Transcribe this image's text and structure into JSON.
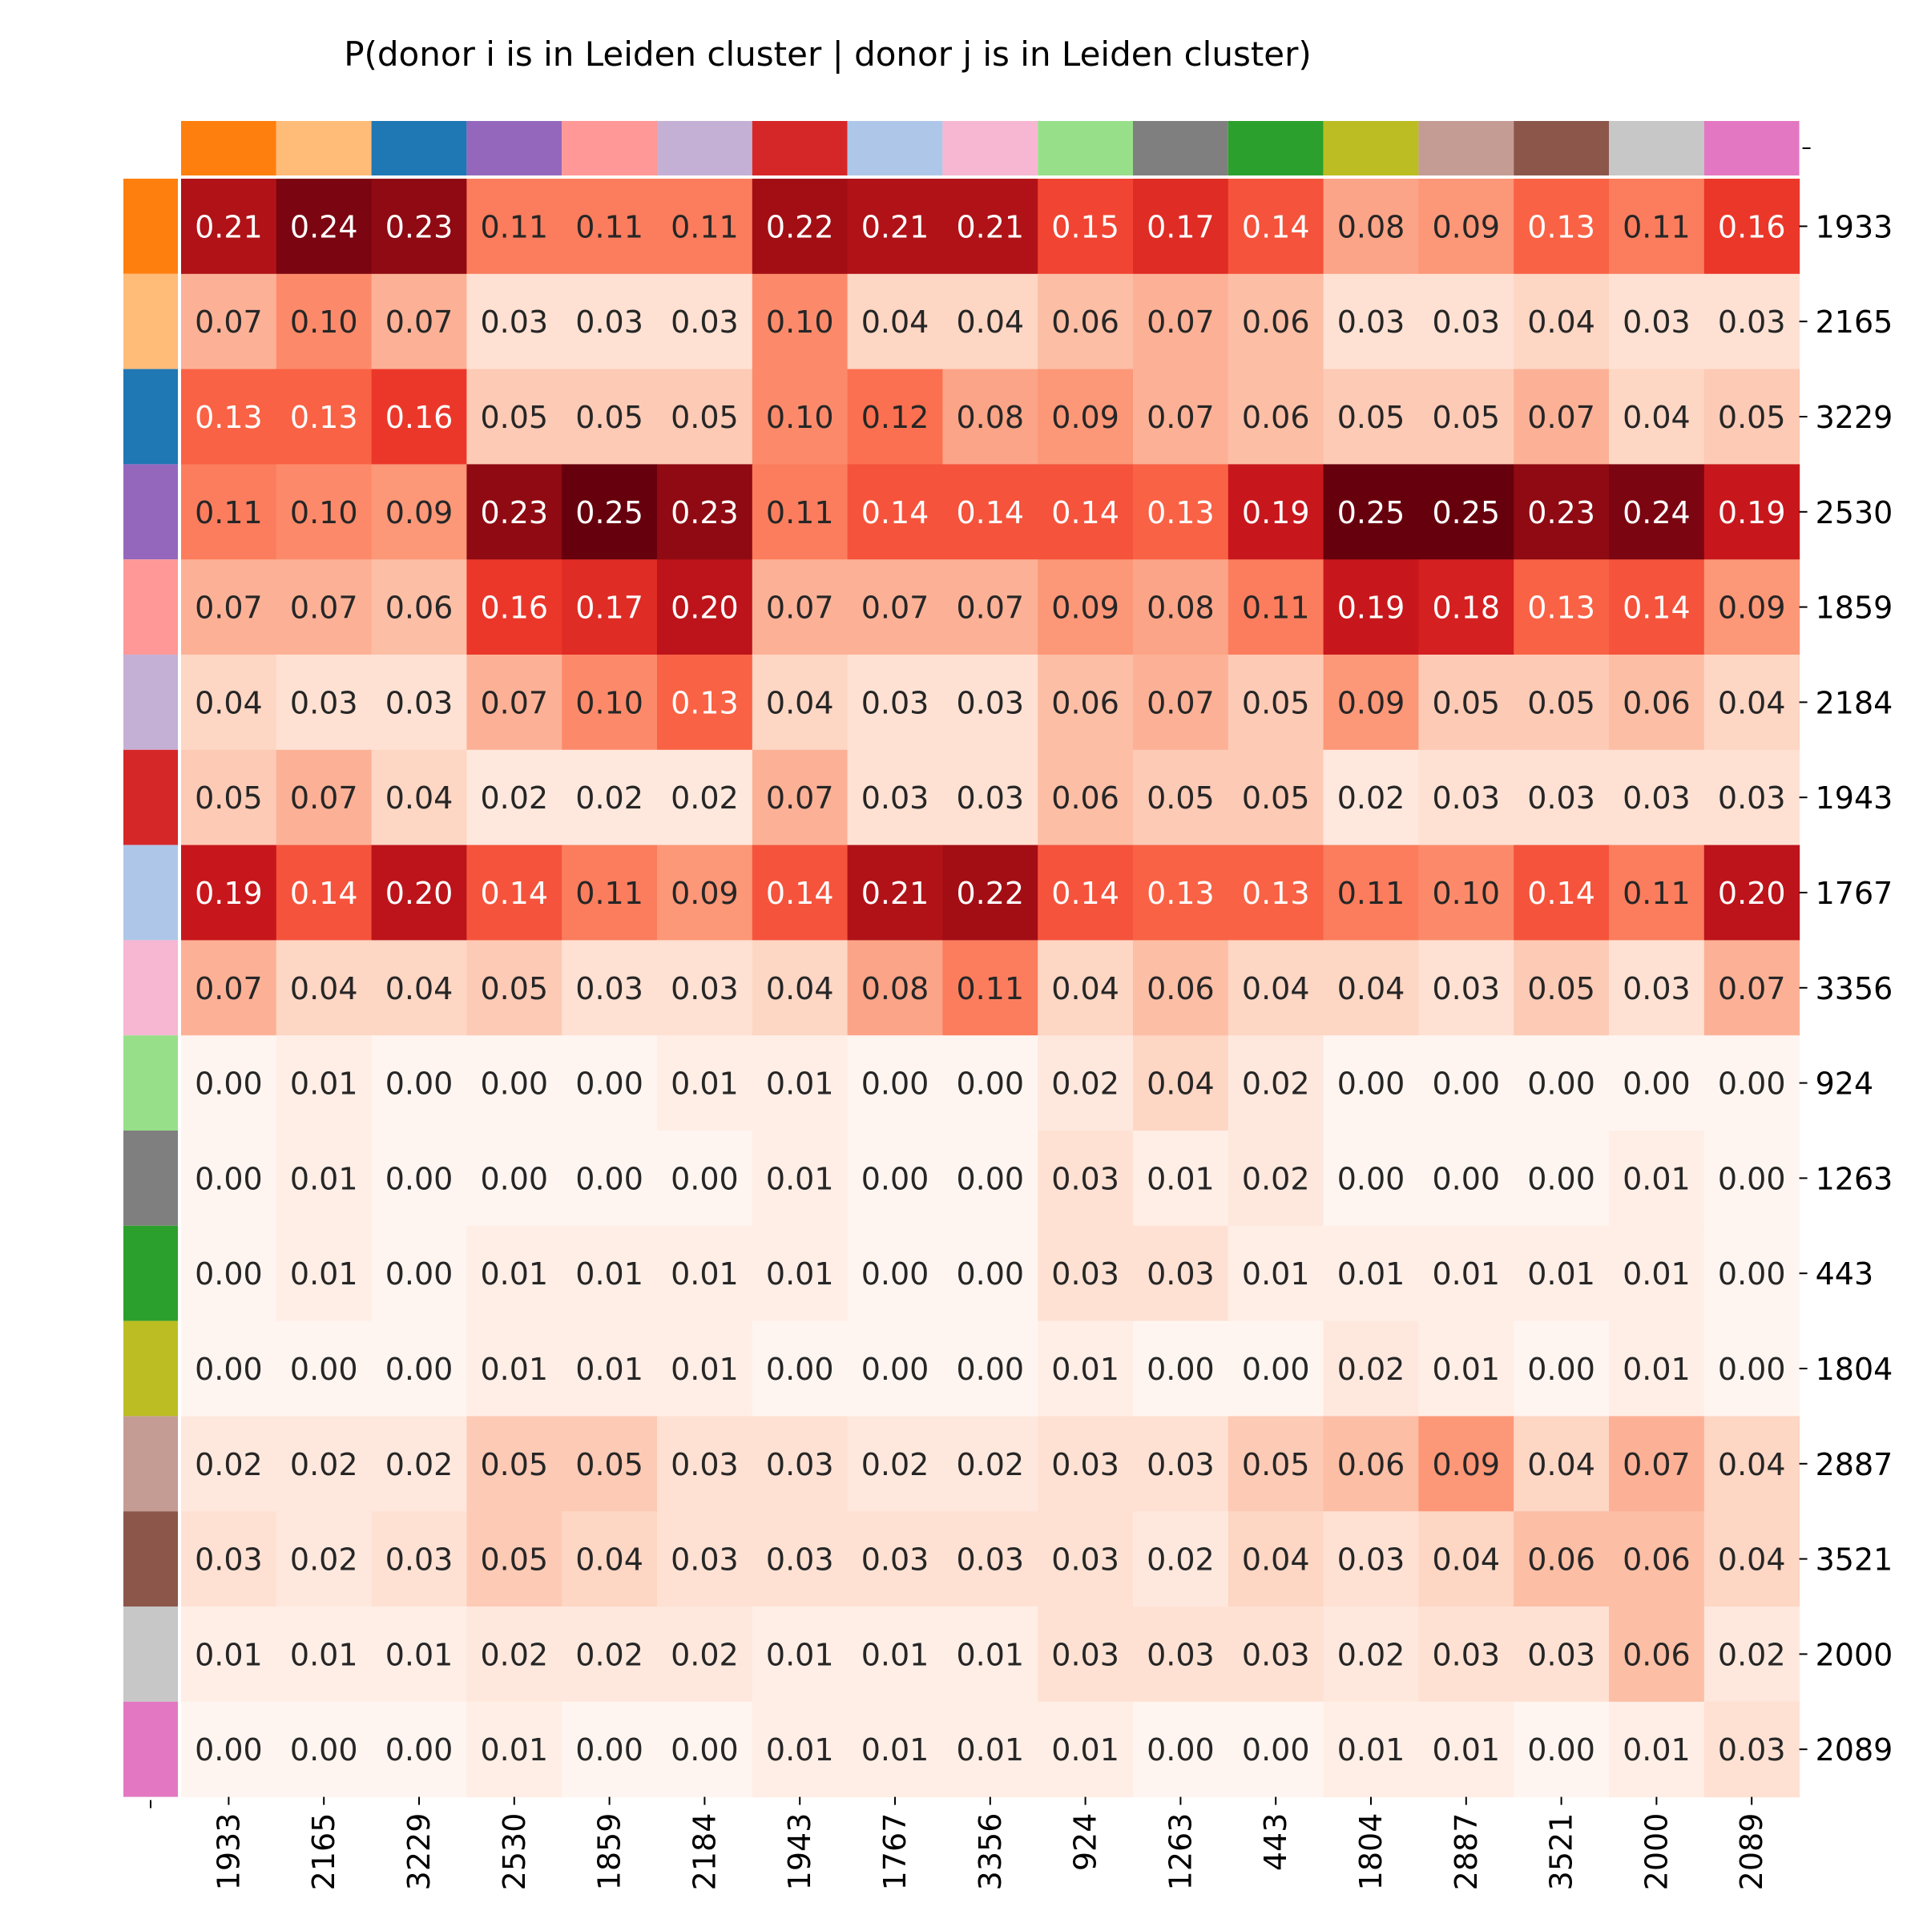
{
  "chart_data": {
    "type": "heatmap",
    "title": "P(donor i is in Leiden cluster | donor j is in Leiden cluster)",
    "xlabel": "",
    "ylabel": "",
    "column_labels": [
      "1933",
      "2165",
      "3229",
      "2530",
      "1859",
      "2184",
      "1943",
      "1767",
      "3356",
      "924",
      "1263",
      "443",
      "1804",
      "2887",
      "3521",
      "2000",
      "2089"
    ],
    "row_labels": [
      "1933",
      "2165",
      "3229",
      "2530",
      "1859",
      "2184",
      "1943",
      "1767",
      "3356",
      "924",
      "1263",
      "443",
      "1804",
      "2887",
      "3521",
      "2000",
      "2089"
    ],
    "donor_colors": [
      "#ff7f0e",
      "#ffbb78",
      "#1f77b4",
      "#9467bd",
      "#ff9896",
      "#c5b0d5",
      "#d62728",
      "#aec7e8",
      "#f7b6d2",
      "#98df8a",
      "#7f7f7f",
      "#2ca02c",
      "#bcbd22",
      "#c49c94",
      "#8c564b",
      "#c7c7c7",
      "#e377c2"
    ],
    "value_range": [
      0,
      0.25
    ],
    "colormap": "Reds",
    "annotation_format": "0.00",
    "values": [
      [
        0.21,
        0.24,
        0.23,
        0.11,
        0.11,
        0.11,
        0.22,
        0.21,
        0.21,
        0.15,
        0.17,
        0.14,
        0.08,
        0.09,
        0.13,
        0.11,
        0.16
      ],
      [
        0.07,
        0.1,
        0.07,
        0.03,
        0.03,
        0.03,
        0.1,
        0.04,
        0.04,
        0.06,
        0.07,
        0.06,
        0.03,
        0.03,
        0.04,
        0.03,
        0.03
      ],
      [
        0.13,
        0.13,
        0.16,
        0.05,
        0.05,
        0.05,
        0.1,
        0.12,
        0.08,
        0.09,
        0.07,
        0.06,
        0.05,
        0.05,
        0.07,
        0.04,
        0.05
      ],
      [
        0.11,
        0.1,
        0.09,
        0.23,
        0.25,
        0.23,
        0.11,
        0.14,
        0.14,
        0.14,
        0.13,
        0.19,
        0.25,
        0.25,
        0.23,
        0.24,
        0.19
      ],
      [
        0.07,
        0.07,
        0.06,
        0.16,
        0.17,
        0.2,
        0.07,
        0.07,
        0.07,
        0.09,
        0.08,
        0.11,
        0.19,
        0.18,
        0.13,
        0.14,
        0.09
      ],
      [
        0.04,
        0.03,
        0.03,
        0.07,
        0.1,
        0.13,
        0.04,
        0.03,
        0.03,
        0.06,
        0.07,
        0.05,
        0.09,
        0.05,
        0.05,
        0.06,
        0.04
      ],
      [
        0.05,
        0.07,
        0.04,
        0.02,
        0.02,
        0.02,
        0.07,
        0.03,
        0.03,
        0.06,
        0.05,
        0.05,
        0.02,
        0.03,
        0.03,
        0.03,
        0.03
      ],
      [
        0.19,
        0.14,
        0.2,
        0.14,
        0.11,
        0.09,
        0.14,
        0.21,
        0.22,
        0.14,
        0.13,
        0.13,
        0.11,
        0.1,
        0.14,
        0.11,
        0.2
      ],
      [
        0.07,
        0.04,
        0.04,
        0.05,
        0.03,
        0.03,
        0.04,
        0.08,
        0.11,
        0.04,
        0.06,
        0.04,
        0.04,
        0.03,
        0.05,
        0.03,
        0.07
      ],
      [
        0.0,
        0.01,
        0.0,
        0.0,
        0.0,
        0.01,
        0.01,
        0.0,
        0.0,
        0.02,
        0.04,
        0.02,
        0.0,
        0.0,
        0.0,
        0.0,
        0.0
      ],
      [
        0.0,
        0.01,
        0.0,
        0.0,
        0.0,
        0.0,
        0.01,
        0.0,
        0.0,
        0.03,
        0.01,
        0.02,
        0.0,
        0.0,
        0.0,
        0.01,
        0.0
      ],
      [
        0.0,
        0.01,
        0.0,
        0.01,
        0.01,
        0.01,
        0.01,
        0.0,
        0.0,
        0.03,
        0.03,
        0.01,
        0.01,
        0.01,
        0.01,
        0.01,
        0.0
      ],
      [
        0.0,
        0.0,
        0.0,
        0.01,
        0.01,
        0.01,
        0.0,
        0.0,
        0.0,
        0.01,
        0.0,
        0.0,
        0.02,
        0.01,
        0.0,
        0.01,
        0.0
      ],
      [
        0.02,
        0.02,
        0.02,
        0.05,
        0.05,
        0.03,
        0.03,
        0.02,
        0.02,
        0.03,
        0.03,
        0.05,
        0.06,
        0.09,
        0.04,
        0.07,
        0.04
      ],
      [
        0.03,
        0.02,
        0.03,
        0.05,
        0.04,
        0.03,
        0.03,
        0.03,
        0.03,
        0.03,
        0.02,
        0.04,
        0.03,
        0.04,
        0.06,
        0.06,
        0.04
      ],
      [
        0.01,
        0.01,
        0.01,
        0.02,
        0.02,
        0.02,
        0.01,
        0.01,
        0.01,
        0.03,
        0.03,
        0.03,
        0.02,
        0.03,
        0.03,
        0.06,
        0.02
      ],
      [
        0.0,
        0.0,
        0.0,
        0.01,
        0.0,
        0.0,
        0.01,
        0.01,
        0.01,
        0.01,
        0.0,
        0.0,
        0.01,
        0.01,
        0.0,
        0.01,
        0.03
      ]
    ]
  }
}
